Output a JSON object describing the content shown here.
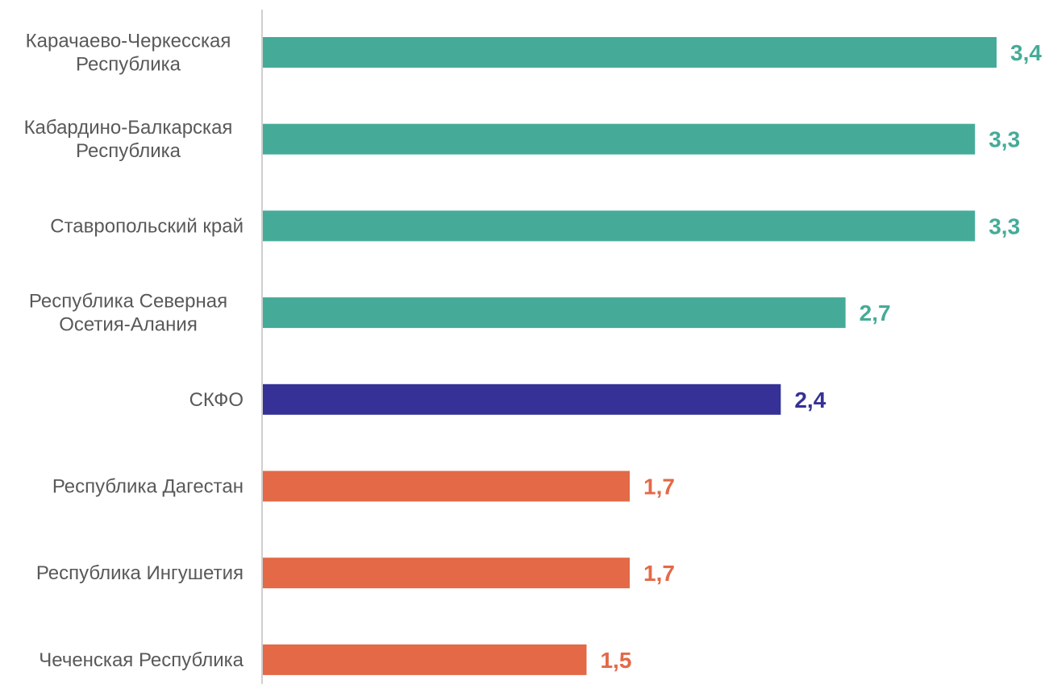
{
  "chart_data": {
    "type": "bar",
    "orientation": "horizontal",
    "categories": [
      [
        "Карачаево-Черкесская",
        "Республика"
      ],
      [
        "Кабардино-Балкарская",
        "Республика"
      ],
      [
        "Ставропольский край"
      ],
      [
        "Республика Северная",
        "Осетия-Алания"
      ],
      [
        "СКФО"
      ],
      [
        "Республика Дагестан"
      ],
      [
        "Республика Ингушетия"
      ],
      [
        "Чеченская Республика"
      ]
    ],
    "values": [
      3.4,
      3.3,
      3.3,
      2.7,
      2.4,
      1.7,
      1.7,
      1.5
    ],
    "value_labels": [
      "3,4",
      "3,3",
      "3,3",
      "2,7",
      "2,4",
      "1,7",
      "1,7",
      "1,5"
    ],
    "bar_colors": [
      "#45AB98",
      "#45AB98",
      "#45AB98",
      "#45AB98",
      "#353196",
      "#E36947",
      "#E36947",
      "#E36947"
    ],
    "xlim": [
      0,
      3.4
    ],
    "grid": false,
    "legend": "none",
    "title": "",
    "xlabel": "",
    "ylabel": ""
  }
}
